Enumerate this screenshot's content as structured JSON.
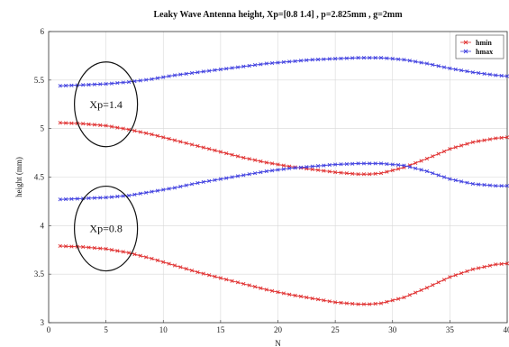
{
  "chart_data": {
    "type": "line",
    "title": "Leaky Wave Antenna height, Xp=[0.8        1.4] , p=2.825mm , g=2mm",
    "xlabel": "N",
    "ylabel": "height (mm)",
    "xlim": [
      0,
      40
    ],
    "ylim": [
      3,
      6
    ],
    "xticks": [
      0,
      5,
      10,
      15,
      20,
      25,
      30,
      35,
      40
    ],
    "yticks": [
      3,
      3.5,
      4,
      4.5,
      5,
      5.5,
      6
    ],
    "grid": true,
    "legend": {
      "placement": "top-right",
      "entries": [
        "hmin",
        "hmax"
      ]
    },
    "series": [
      {
        "name": "hmin",
        "group": "Xp=1.4",
        "color": "#e03030",
        "x": [
          1,
          3,
          5,
          7,
          9,
          11,
          13,
          15,
          17,
          19,
          21,
          23,
          25,
          27,
          28,
          29,
          31,
          33,
          35,
          37,
          39,
          40
        ],
        "y": [
          5.06,
          5.05,
          5.03,
          4.99,
          4.94,
          4.88,
          4.82,
          4.76,
          4.7,
          4.65,
          4.61,
          4.58,
          4.55,
          4.53,
          4.53,
          4.54,
          4.6,
          4.69,
          4.79,
          4.86,
          4.9,
          4.91
        ]
      },
      {
        "name": "hmax",
        "group": "Xp=1.4",
        "color": "#4040e0",
        "x": [
          1,
          3,
          5,
          7,
          9,
          11,
          13,
          15,
          17,
          19,
          21,
          23,
          25,
          27,
          28,
          29,
          31,
          33,
          35,
          37,
          39,
          40
        ],
        "y": [
          5.44,
          5.45,
          5.46,
          5.48,
          5.51,
          5.55,
          5.58,
          5.61,
          5.64,
          5.67,
          5.69,
          5.71,
          5.72,
          5.73,
          5.73,
          5.73,
          5.71,
          5.67,
          5.62,
          5.58,
          5.55,
          5.54
        ]
      },
      {
        "name": "hmin",
        "group": "Xp=0.8",
        "color": "#e03030",
        "x": [
          1,
          3,
          5,
          7,
          9,
          11,
          13,
          15,
          17,
          19,
          21,
          23,
          25,
          27,
          28,
          29,
          31,
          33,
          35,
          37,
          39,
          40
        ],
        "y": [
          3.79,
          3.78,
          3.76,
          3.72,
          3.66,
          3.59,
          3.52,
          3.46,
          3.4,
          3.34,
          3.29,
          3.25,
          3.21,
          3.19,
          3.19,
          3.2,
          3.26,
          3.36,
          3.47,
          3.55,
          3.6,
          3.61
        ]
      },
      {
        "name": "hmax",
        "group": "Xp=0.8",
        "color": "#4040e0",
        "x": [
          1,
          3,
          5,
          7,
          9,
          11,
          13,
          15,
          17,
          19,
          21,
          23,
          25,
          27,
          28,
          29,
          31,
          33,
          35,
          37,
          39,
          40
        ],
        "y": [
          4.27,
          4.28,
          4.29,
          4.31,
          4.35,
          4.39,
          4.44,
          4.48,
          4.52,
          4.56,
          4.59,
          4.61,
          4.63,
          4.64,
          4.64,
          4.64,
          4.62,
          4.56,
          4.48,
          4.43,
          4.41,
          4.41
        ]
      }
    ],
    "annotations": [
      {
        "text": "Xp=1.4",
        "x": 5,
        "y": 5.25
      },
      {
        "text": "Xp=0.8",
        "x": 5,
        "y": 3.97
      }
    ]
  }
}
